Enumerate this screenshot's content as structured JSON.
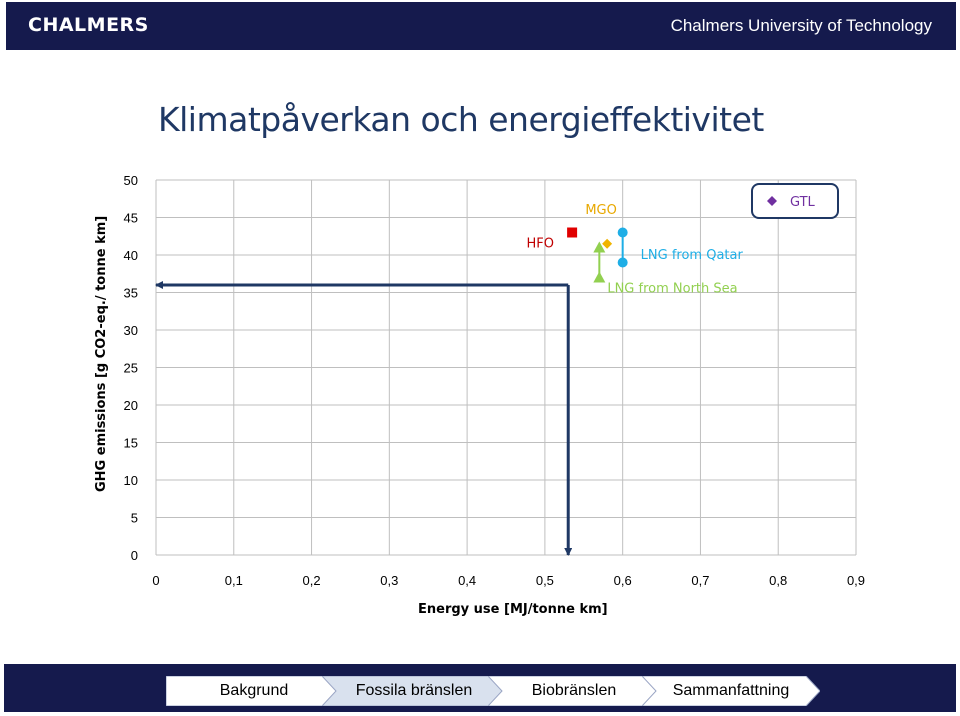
{
  "header": {
    "logo_text": "CHALMERS",
    "university": "Chalmers University of Technology"
  },
  "slide_title": "Klimatpåverkan och energieffektivitet",
  "chart_data": {
    "type": "scatter",
    "xlabel": "Energy use [MJ/tonne km]",
    "ylabel": "GHG emissions [g CO2-eq./ tonne km]",
    "xlim": [
      0,
      0.9
    ],
    "ylim": [
      0,
      50
    ],
    "x_ticks": [
      "0",
      "0,1",
      "0,2",
      "0,3",
      "0,4",
      "0,5",
      "0,6",
      "0,7",
      "0,8",
      "0,9"
    ],
    "y_ticks": [
      "0",
      "5",
      "10",
      "15",
      "20",
      "25",
      "30",
      "35",
      "40",
      "45",
      "50"
    ],
    "grid": true,
    "series": [
      {
        "name": "HFO",
        "marker": "square",
        "color": "#e00000",
        "label_color": "#c00000",
        "points": [
          {
            "x": 0.535,
            "y": 43.0
          }
        ]
      },
      {
        "name": "MGO",
        "marker": "diamond",
        "color": "#f0b400",
        "label_color": "#e8a800",
        "points": [
          {
            "x": 0.58,
            "y": 41.5
          }
        ]
      },
      {
        "name": "LNG from Qatar",
        "marker": "circle",
        "color": "#1eaee6",
        "label_color": "#1eaee6",
        "points": [
          {
            "x": 0.6,
            "y": 43.0
          },
          {
            "x": 0.6,
            "y": 39.0
          }
        ]
      },
      {
        "name": "LNG from North Sea",
        "marker": "triangle",
        "color": "#92d050",
        "label_color": "#92d050",
        "points": [
          {
            "x": 0.57,
            "y": 41.0
          },
          {
            "x": 0.57,
            "y": 37.0
          }
        ]
      },
      {
        "name": "GTL",
        "marker": "diamond",
        "color": "#7030a0",
        "label_color": "#7030a0",
        "points": []
      }
    ],
    "arrows": [
      {
        "from": {
          "x": 0.53,
          "y": 36.0
        },
        "to": {
          "x": 0.0,
          "y": 36.0
        },
        "color": "#1f3864"
      },
      {
        "from": {
          "x": 0.53,
          "y": 36.0
        },
        "to": {
          "x": 0.53,
          "y": 0.0
        },
        "color": "#1f3864"
      }
    ],
    "legend": {
      "entry": "GTL",
      "placement": "top-right"
    }
  },
  "nav": {
    "items": [
      "Bakgrund",
      "Fossila bränslen",
      "Biobränslen",
      "Sammanfattning"
    ],
    "active_index": 1
  }
}
